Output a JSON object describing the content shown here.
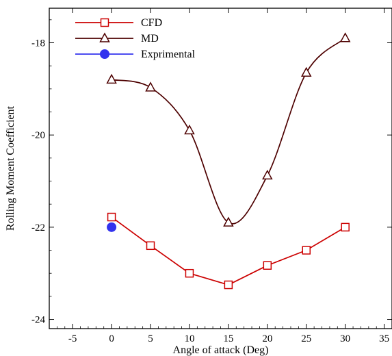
{
  "chart_data": {
    "type": "line",
    "xlabel": "Angle of attack (Deg)",
    "ylabel": "Rolling Moment Coefficient",
    "xlim": [
      -8,
      36
    ],
    "ylim": [
      -24.2,
      -17.25
    ],
    "x_ticks": [
      -5,
      0,
      5,
      10,
      15,
      20,
      25,
      30,
      35
    ],
    "y_ticks": [
      -24,
      -22,
      -20,
      -18
    ],
    "legend_position": "top-left",
    "series": [
      {
        "name": "CFD",
        "marker": "square",
        "color": "#cc0000",
        "smooth": false,
        "x": [
          0,
          5,
          10,
          15,
          20,
          25,
          30
        ],
        "y": [
          -21.78,
          -22.4,
          -23.0,
          -23.25,
          -22.83,
          -22.5,
          -22.0
        ]
      },
      {
        "name": "MD",
        "marker": "triangle",
        "color": "#4d0000",
        "smooth": true,
        "x": [
          0,
          5,
          10,
          15,
          20,
          25,
          30
        ],
        "y": [
          -18.8,
          -18.97,
          -19.9,
          -21.9,
          -20.88,
          -18.65,
          -17.9
        ]
      },
      {
        "name": "Exprimental",
        "marker": "circle",
        "color": "#3333ee",
        "smooth": false,
        "x": [
          0
        ],
        "y": [
          -22.0
        ]
      }
    ]
  }
}
